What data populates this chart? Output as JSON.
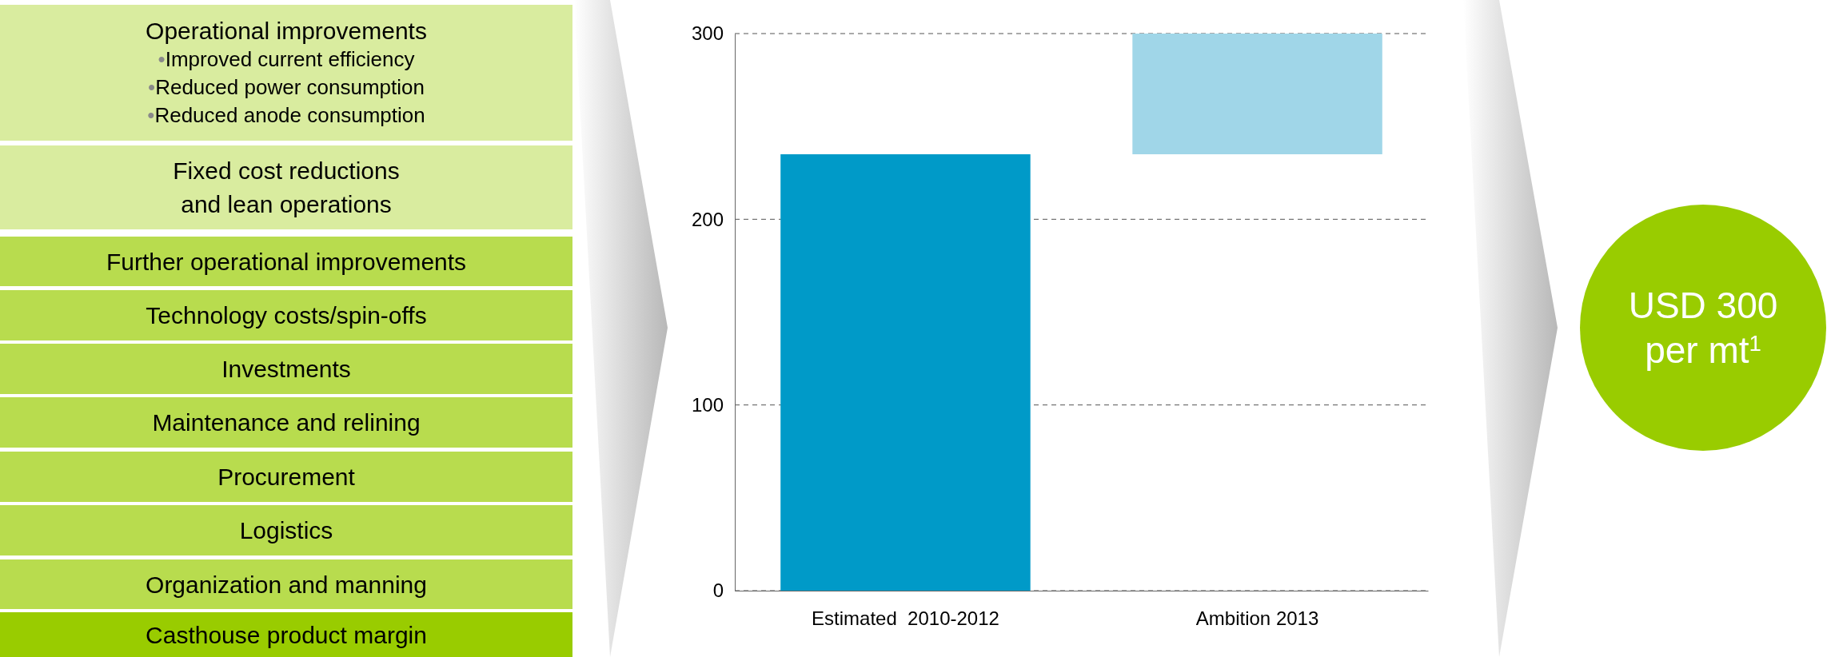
{
  "chart_data": {
    "type": "bar",
    "categories": [
      "Estimated  2010-2012",
      "Ambition 2013"
    ],
    "values": [
      235,
      65
    ],
    "base": [
      0,
      235
    ],
    "colors": [
      "#009ac8",
      "#a0d6e8"
    ],
    "ylim": [
      0,
      300
    ],
    "yticks": [
      0,
      100,
      200,
      300
    ],
    "grid": "y",
    "annotations": [
      "Operational improvements\n•Improved current efficiency\n•Reduced power consumption\n•Reduced anode consumption",
      "Fixed cost reductions\nand lean operations",
      "Further operational improvements",
      "Technology costs/spin-offs",
      "Investments",
      "Maintenance and relining",
      "Procurement",
      "Logistics",
      "Organization and manning",
      "Casthouse product margin",
      "USD 300\nper mt$^{1}$"
    ]
  }
}
